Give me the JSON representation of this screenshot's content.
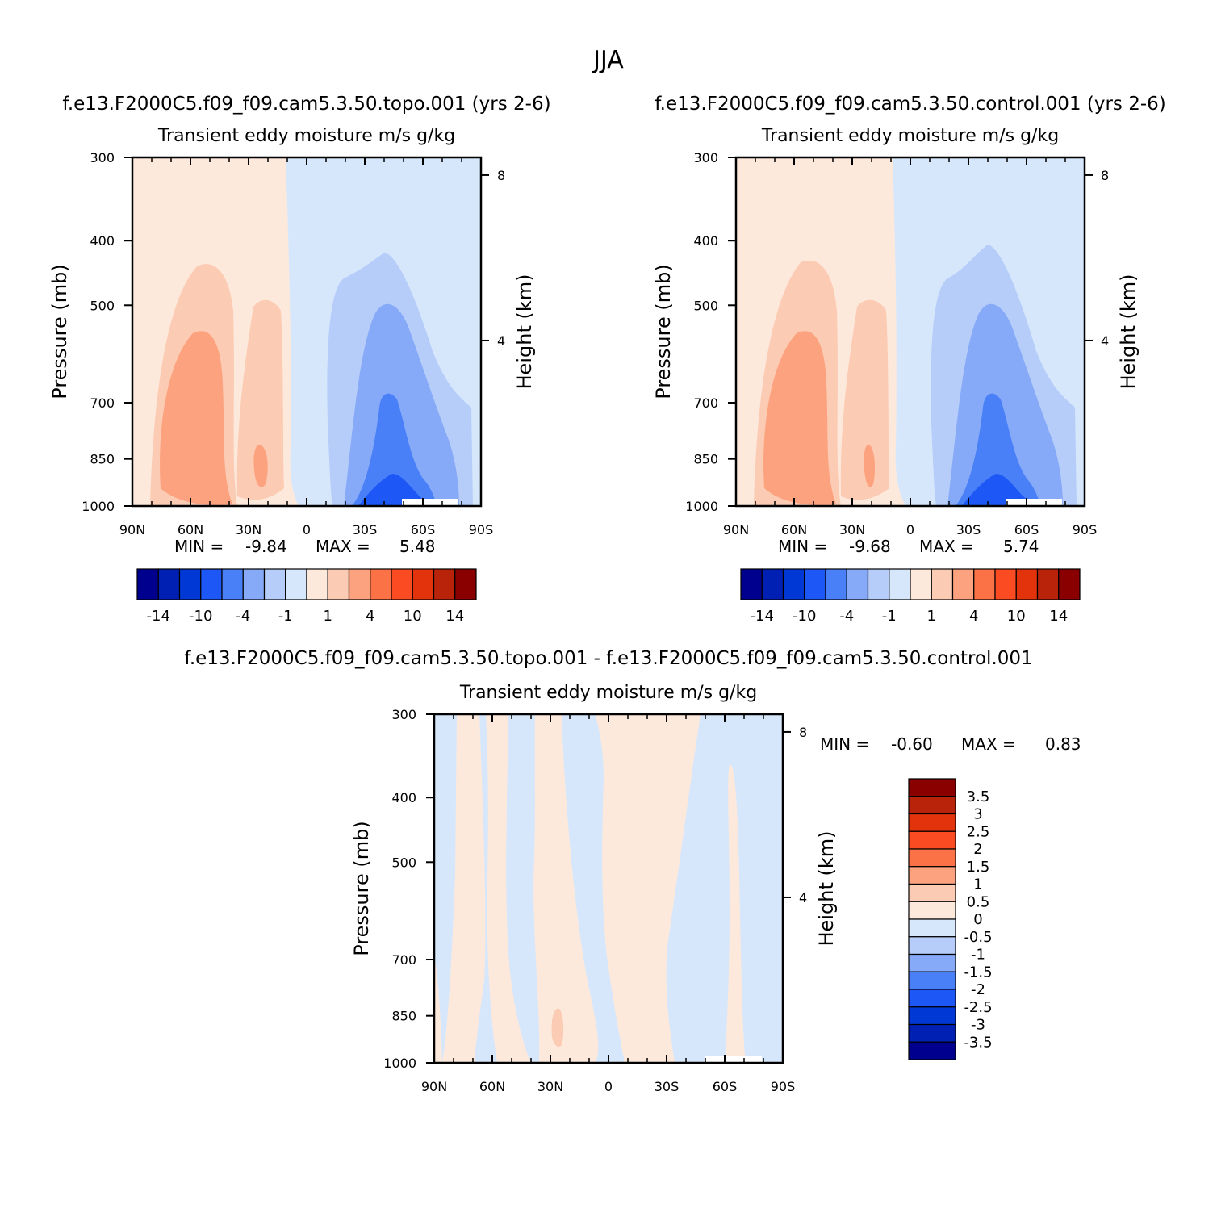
{
  "figure": {
    "title": "JJA"
  },
  "palette": {
    "colors": [
      "#00008f",
      "#0020b3",
      "#0038d6",
      "#1d57f5",
      "#4a80f7",
      "#86aaf8",
      "#b6cdf9",
      "#d6e7fc",
      "#fde9dc",
      "#fccbb3",
      "#fca27f",
      "#fa7246",
      "#fa4b22",
      "#e2330c",
      "#b8230a",
      "#8a0000"
    ],
    "labels": [
      "-14",
      "-10",
      "-4",
      "-1",
      "1",
      "4",
      "10",
      "14"
    ]
  },
  "chart_data": [
    {
      "type": "contour",
      "subtitle": "f.e13.F2000C5.f09_f09.cam5.3.50.topo.001 (yrs 2-6)",
      "title": "Transient eddy moisture m/s g/kg",
      "xlabel": "",
      "ylabel": "Pressure (mb)",
      "y2label": "Height (km)",
      "x_ticks": [
        "90N",
        "60N",
        "30N",
        "0",
        "30S",
        "60S",
        "90S"
      ],
      "x_range": [
        90,
        -90
      ],
      "y_ticks": [
        "300",
        "400",
        "500",
        "700",
        "850",
        "1000"
      ],
      "y_range": [
        1000,
        300
      ],
      "height_ticks": [
        "8",
        "4"
      ],
      "min_label": "MIN =",
      "min_value": "-9.84",
      "max_label": "MAX =",
      "max_value": "5.48",
      "min": -9.84,
      "max": 5.48,
      "levels": [
        -14,
        -12,
        -10,
        -8,
        -4,
        -2,
        -1,
        0,
        1,
        2,
        4,
        8,
        10,
        12,
        14
      ],
      "colorbar_labels": [
        "-14",
        "-10",
        "-4",
        "-1",
        "1",
        "4",
        "10",
        "14"
      ]
    },
    {
      "type": "contour",
      "subtitle": "f.e13.F2000C5.f09_f09.cam5.3.50.control.001 (yrs 2-6)",
      "title": "Transient eddy moisture m/s g/kg",
      "xlabel": "",
      "ylabel": "Pressure (mb)",
      "y2label": "Height (km)",
      "x_ticks": [
        "90N",
        "60N",
        "30N",
        "0",
        "30S",
        "60S",
        "90S"
      ],
      "x_range": [
        90,
        -90
      ],
      "y_ticks": [
        "300",
        "400",
        "500",
        "700",
        "850",
        "1000"
      ],
      "y_range": [
        1000,
        300
      ],
      "height_ticks": [
        "8",
        "4"
      ],
      "min_label": "MIN =",
      "min_value": "-9.68",
      "max_label": "MAX =",
      "max_value": "5.74",
      "min": -9.68,
      "max": 5.74,
      "levels": [
        -14,
        -12,
        -10,
        -8,
        -4,
        -2,
        -1,
        0,
        1,
        2,
        4,
        8,
        10,
        12,
        14
      ],
      "colorbar_labels": [
        "-14",
        "-10",
        "-4",
        "-1",
        "1",
        "4",
        "10",
        "14"
      ]
    },
    {
      "type": "contour",
      "subtitle": "f.e13.F2000C5.f09_f09.cam5.3.50.topo.001 - f.e13.F2000C5.f09_f09.cam5.3.50.control.001",
      "title": "Transient eddy moisture m/s g/kg",
      "xlabel": "",
      "ylabel": "Pressure (mb)",
      "y2label": "Height (km)",
      "x_ticks": [
        "90N",
        "60N",
        "30N",
        "0",
        "30S",
        "60S",
        "90S"
      ],
      "x_range": [
        90,
        -90
      ],
      "y_ticks": [
        "300",
        "400",
        "500",
        "700",
        "850",
        "1000"
      ],
      "y_range": [
        1000,
        300
      ],
      "height_ticks": [
        "8",
        "4"
      ],
      "min_label": "MIN =",
      "min_value": "-0.60",
      "max_label": "MAX =",
      "max_value": "0.83",
      "min": -0.6,
      "max": 0.83,
      "levels": [
        -3.5,
        -3,
        -2.5,
        -2,
        -1.5,
        -1,
        -0.5,
        0,
        0.5,
        1,
        1.5,
        2,
        2.5,
        3,
        3.5
      ],
      "colorbar_labels": [
        "3.5",
        "3",
        "2.5",
        "2",
        "1.5",
        "1",
        "0.5",
        "0",
        "-0.5",
        "-1",
        "-1.5",
        "-2",
        "-2.5",
        "-3",
        "-3.5"
      ]
    }
  ]
}
